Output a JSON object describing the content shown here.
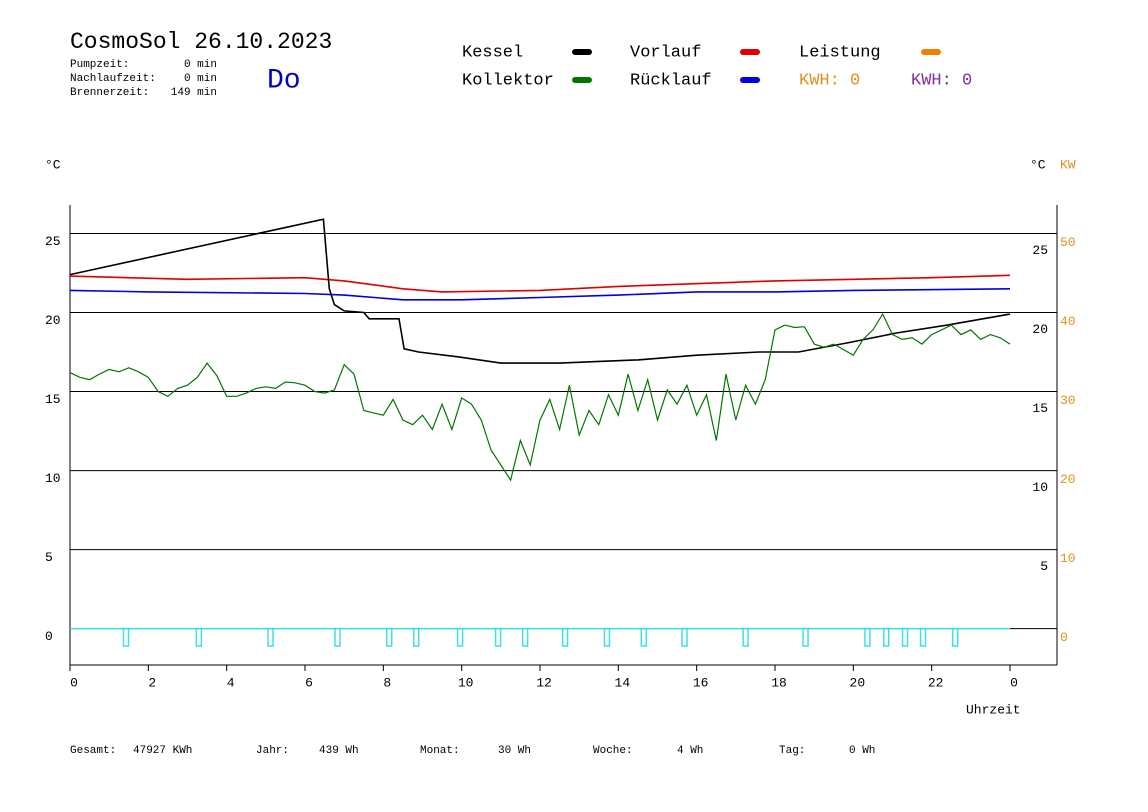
{
  "chart_data": {
    "type": "line",
    "title": "CosmoSol 26.10.2023",
    "day": "Do",
    "stats": [
      {
        "label": "Pumpzeit:",
        "value": "0 min"
      },
      {
        "label": "Nachlaufzeit:",
        "value": "0 min"
      },
      {
        "label": "Brennerzeit:",
        "value": "149 min"
      }
    ],
    "y_unit": "°C",
    "y_unit_right": "°C",
    "y2_unit": "KW",
    "xlabel": "Uhrzeit",
    "xlim": [
      0,
      24
    ],
    "xticks": [
      0,
      2,
      4,
      6,
      8,
      10,
      12,
      14,
      16,
      18,
      20,
      22,
      {
        "value": 24,
        "label": "0"
      }
    ],
    "ylim": [
      -2.3,
      26.8
    ],
    "yticks": [
      0,
      5,
      10,
      15,
      20,
      25
    ],
    "yticks_right": [
      5,
      10,
      15,
      20,
      25
    ],
    "y2lim": [
      -4.6,
      53.6
    ],
    "y2ticks": [
      0,
      10,
      20,
      30,
      40,
      50
    ],
    "grid": true,
    "series": [
      {
        "name": "Kessel",
        "color": "#000000",
        "x": [
          0,
          6.47,
          6.62,
          6.75,
          7.0,
          7.5,
          7.64,
          8.4,
          8.53,
          8.9,
          9.9,
          11,
          12.5,
          14.5,
          16,
          17.6,
          18.6,
          19.9,
          21.1,
          22.4,
          24
        ],
        "values": [
          22.4,
          25.9,
          21.5,
          20.5,
          20.1,
          20.0,
          19.6,
          19.6,
          17.7,
          17.5,
          17.2,
          16.8,
          16.8,
          17.0,
          17.3,
          17.5,
          17.5,
          18.1,
          18.7,
          19.2,
          19.9
        ]
      },
      {
        "name": "Kollektor",
        "color": "#007800",
        "x": [
          0,
          0.25,
          0.5,
          0.75,
          1,
          1.25,
          1.5,
          1.75,
          2,
          2.25,
          2.5,
          2.75,
          3,
          3.25,
          3.5,
          3.75,
          4,
          4.25,
          4.5,
          4.75,
          5,
          5.25,
          5.5,
          5.75,
          6,
          6.25,
          6.5,
          6.75,
          7,
          7.25,
          7.5,
          7.75,
          8,
          8.25,
          8.5,
          8.75,
          9,
          9.25,
          9.5,
          9.75,
          10,
          10.25,
          10.5,
          10.75,
          11,
          11.25,
          11.5,
          11.75,
          12,
          12.25,
          12.5,
          12.75,
          13,
          13.25,
          13.5,
          13.75,
          14,
          14.25,
          14.5,
          14.75,
          15,
          15.25,
          15.5,
          15.75,
          16,
          16.25,
          16.5,
          16.75,
          17,
          17.25,
          17.5,
          17.75,
          18,
          18.25,
          18.5,
          18.75,
          19,
          19.25,
          19.5,
          19.75,
          20,
          20.25,
          20.5,
          20.75,
          21,
          21.25,
          21.5,
          21.75,
          22,
          22.25,
          22.5,
          22.75,
          23,
          23.25,
          23.5,
          23.75,
          24
        ],
        "values": [
          16.2,
          15.9,
          15.75,
          16.1,
          16.4,
          16.25,
          16.5,
          16.25,
          15.9,
          15.0,
          14.7,
          15.2,
          15.4,
          15.9,
          16.8,
          16.0,
          14.7,
          14.7,
          14.9,
          15.2,
          15.3,
          15.2,
          15.6,
          15.55,
          15.4,
          15.0,
          14.9,
          15.1,
          16.7,
          16.1,
          13.8,
          13.65,
          13.5,
          14.5,
          13.2,
          12.9,
          13.5,
          12.6,
          14.2,
          12.6,
          14.6,
          14.2,
          13.2,
          11.3,
          10.35,
          9.4,
          11.9,
          10.35,
          13.2,
          14.5,
          12.6,
          15.4,
          12.25,
          13.8,
          12.9,
          14.8,
          13.5,
          16.1,
          13.8,
          15.75,
          13.2,
          15.1,
          14.2,
          15.4,
          13.5,
          14.8,
          11.9,
          16.1,
          13.2,
          15.4,
          14.2,
          15.75,
          18.9,
          19.2,
          19.05,
          19.1,
          18.0,
          17.8,
          18.0,
          17.65,
          17.3,
          18.3,
          18.9,
          19.9,
          18.6,
          18.3,
          18.4,
          18.0,
          18.6,
          18.9,
          19.2,
          18.6,
          18.9,
          18.3,
          18.6,
          18.4,
          18.0
        ]
      },
      {
        "name": "Vorlauf",
        "color": "#e00000",
        "x": [
          0,
          3,
          6,
          7,
          8.5,
          9.5,
          12,
          14,
          18,
          22,
          24
        ],
        "values": [
          22.3,
          22.1,
          22.2,
          22.0,
          21.5,
          21.3,
          21.4,
          21.65,
          22.0,
          22.2,
          22.35
        ]
      },
      {
        "name": "Rücklauf",
        "color": "#0000e0",
        "x": [
          0,
          2,
          6,
          7,
          8.5,
          10,
          12,
          14,
          16,
          18,
          20,
          24
        ],
        "values": [
          21.4,
          21.3,
          21.2,
          21.1,
          20.8,
          20.8,
          20.95,
          21.1,
          21.3,
          21.3,
          21.4,
          21.5
        ]
      },
      {
        "name": "Leistung",
        "color": "#f08000"
      }
    ],
    "pulses": {
      "color": "#40e0e0",
      "x": [
        1.43,
        3.29,
        5.12,
        6.83,
        8.15,
        8.84,
        9.96,
        10.93,
        11.62,
        12.64,
        13.71,
        14.65,
        15.69,
        17.25,
        18.78,
        20.36,
        20.84,
        21.32,
        21.78,
        22.6
      ],
      "values": [
        -1.1,
        -1.1,
        -1.1,
        -1.1,
        -1.1,
        -1.1,
        -1.1,
        -1.1,
        -1.1,
        -1.1,
        -1.1,
        -1.1,
        -1.1,
        -1.1,
        -1.1,
        -1.1,
        -1.1,
        -1.1,
        -1.1,
        -1.1
      ]
    },
    "kwh_labels": [
      {
        "text": "KWH: 0",
        "color": "#e09020"
      },
      {
        "text": "KWH: 0",
        "color": "#8030a0"
      }
    ],
    "totals": [
      {
        "label": "Gesamt:",
        "value": "47927 KWh"
      },
      {
        "label": "Jahr:",
        "value": "439 Wh"
      },
      {
        "label": "Monat:",
        "value": "30 Wh"
      },
      {
        "label": "Woche:",
        "value": "4 Wh"
      },
      {
        "label": "Tag:",
        "value": "0 Wh"
      }
    ]
  }
}
